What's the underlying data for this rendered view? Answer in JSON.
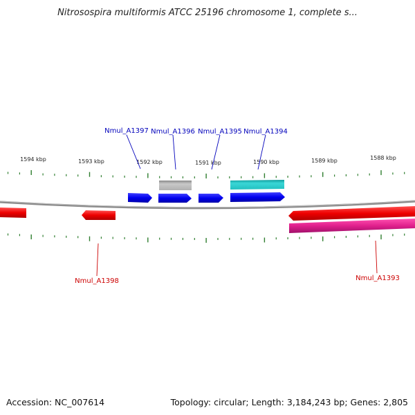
{
  "map": {
    "title": "Nitrosospira multiformis ATCC 25196 chromosome 1, complete s...",
    "accession": "Accession: NC_007614",
    "topology": "Topology: circular; Length: 3,184,243 bp; Genes: 2,805"
  },
  "colors": {
    "backbone": "#8c8c8c",
    "tick": "#2e7d2e",
    "top_label": "#0000bb",
    "bottom_label": "#cc0000",
    "blue_gene": "#0a0af0",
    "gray_gene": "#b4b4b4",
    "cyan_gene": "#22c8c8",
    "red_gene": "#ee1111",
    "magenta_gene": "#e0208c"
  },
  "kbp_labels": [
    {
      "text": "1594 kbp"
    },
    {
      "text": "1593 kbp"
    },
    {
      "text": "1592 kbp"
    },
    {
      "text": "1591 kbp"
    },
    {
      "text": "1590 kbp"
    },
    {
      "text": "1589 kbp"
    },
    {
      "text": "1588 kbp"
    }
  ],
  "gene_labels": {
    "top": [
      {
        "text": "Nmul_A1397"
      },
      {
        "text": "Nmul_A1396"
      },
      {
        "text": "Nmul_A1395"
      },
      {
        "text": "Nmul_A1394"
      }
    ],
    "bottom": [
      {
        "text": "Nmul_A1398"
      },
      {
        "text": "Nmul_A1393"
      }
    ]
  }
}
